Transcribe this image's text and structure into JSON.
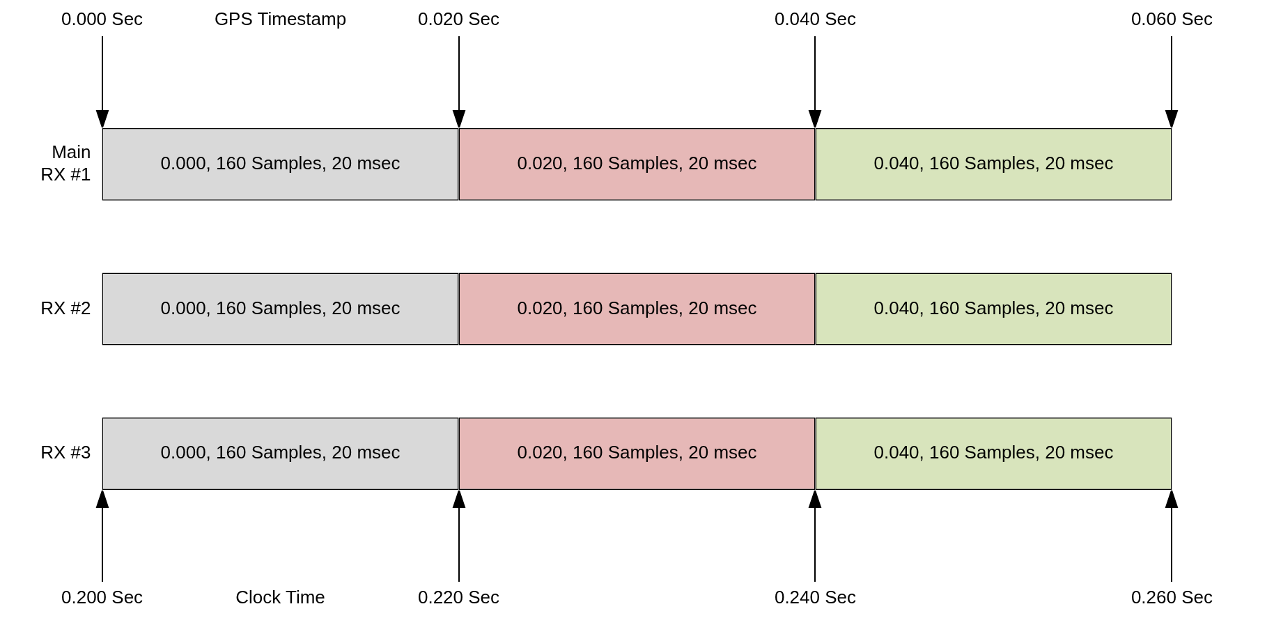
{
  "chart_data": {
    "type": "bar",
    "orientation": "horizontal",
    "stacked": true,
    "categories": [
      "Main RX #1",
      "RX #2",
      "RX #3"
    ],
    "series": [
      {
        "color": "#d9d9d9",
        "axis": "x2",
        "values": [
          0.02,
          0.02,
          0.02
        ]
      },
      {
        "color": "#e6b8b7",
        "axis": "x2",
        "values": [
          0.02,
          0.02,
          0.02
        ]
      },
      {
        "color": "#d8e4bc",
        "axis": "x2",
        "values": [
          0.02,
          0.02,
          0.02
        ]
      }
    ],
    "annotations": [
      "0.000, 160 Samples, 20 msec",
      "0.020, 160 Samples, 20 msec",
      "0.040, 160 Samples, 20 msec",
      "0.000, 160 Samples, 20 msec",
      "0.020, 160 Samples, 20 msec",
      "0.040, 160 Samples, 20 msec",
      "0.000, 160 Samples, 20 msec",
      "0.020, 160 Samples, 20 msec",
      "0.040, 160 Samples, 20 msec"
    ],
    "x2label": "GPS Timestamp",
    "xlabel": "Clock Time",
    "x2lim": [
      0,
      0.06
    ],
    "x2ticks": [
      {
        "value": 0,
        "label": "0.000 Sec"
      },
      {
        "value": 0.02,
        "label": "0.020 Sec"
      },
      {
        "value": 0.04,
        "label": "0.040 Sec"
      },
      {
        "value": 0.06,
        "label": "0.060 Sec"
      }
    ],
    "xlim": [
      0.2,
      0.26
    ],
    "xticks": [
      {
        "value": 0.2,
        "label": "0.200 Sec"
      },
      {
        "value": 0.22,
        "label": "0.220 Sec"
      },
      {
        "value": 0.24,
        "label": "0.240 Sec"
      },
      {
        "value": 0.26,
        "label": "0.260 Sec"
      }
    ],
    "grid": false,
    "legend": false
  }
}
